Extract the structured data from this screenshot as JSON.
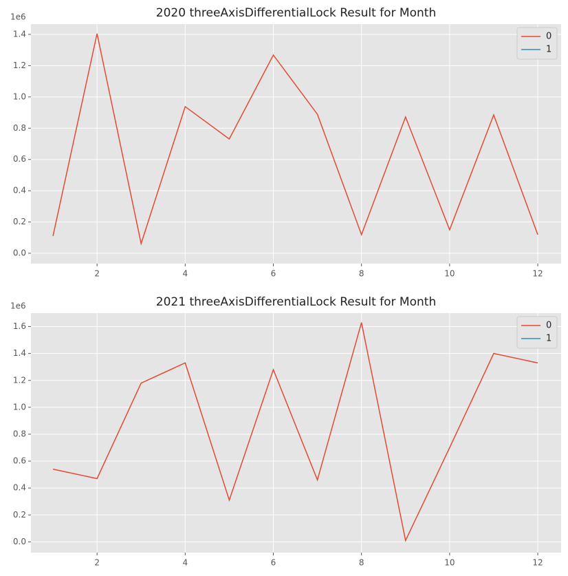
{
  "chart_data": [
    {
      "type": "line",
      "title": "2020 threeAxisDifferentialLock Result for Month",
      "y_offset_label": "1e6",
      "x": [
        1,
        2,
        3,
        4,
        5,
        6,
        7,
        8,
        9,
        10,
        11,
        12
      ],
      "series": [
        {
          "name": "0",
          "color": "#E24A33",
          "values": [
            0.11,
            1.405,
            0.062,
            0.938,
            0.731,
            1.268,
            0.889,
            0.119,
            0.872,
            0.15,
            0.885,
            0.119
          ]
        },
        {
          "name": "1",
          "color": "#348ABD",
          "values": [
            null,
            null,
            null,
            null,
            null,
            null,
            null,
            null,
            null,
            null,
            null,
            null
          ]
        }
      ],
      "xlim": [
        0.5,
        12.53
      ],
      "xticks": [
        2,
        4,
        6,
        8,
        10,
        12
      ],
      "ylim": [
        -0.066,
        1.466
      ],
      "yticks": [
        {
          "value": 0,
          "label": "0.0"
        },
        0.2,
        0.4,
        0.6,
        0.8,
        {
          "value": 1,
          "label": "1.0"
        },
        1.2,
        1.4
      ],
      "grid": true,
      "legend": "upper right"
    },
    {
      "type": "line",
      "title": "2021 threeAxisDifferentialLock Result for Month",
      "y_offset_label": "1e6",
      "x": [
        1,
        2,
        3,
        4,
        5,
        6,
        7,
        8,
        9,
        10,
        11,
        12
      ],
      "series": [
        {
          "name": "0",
          "color": "#E24A33",
          "values": [
            0.54,
            0.47,
            1.18,
            1.33,
            0.31,
            1.28,
            0.46,
            1.63,
            0.01,
            0.7,
            1.4,
            1.33
          ]
        },
        {
          "name": "1",
          "color": "#348ABD",
          "values": [
            null,
            null,
            null,
            null,
            null,
            null,
            null,
            null,
            null,
            null,
            null,
            null
          ]
        }
      ],
      "xlim": [
        0.5,
        12.53
      ],
      "xticks": [
        2,
        4,
        6,
        8,
        10,
        12
      ],
      "ylim": [
        -0.08,
        1.7
      ],
      "yticks": [
        {
          "value": 0,
          "label": "0.0"
        },
        0.2,
        0.4,
        0.6,
        0.8,
        {
          "value": 1,
          "label": "1.0"
        },
        1.2,
        1.4,
        1.6
      ],
      "grid": true,
      "legend": "upper right"
    }
  ]
}
